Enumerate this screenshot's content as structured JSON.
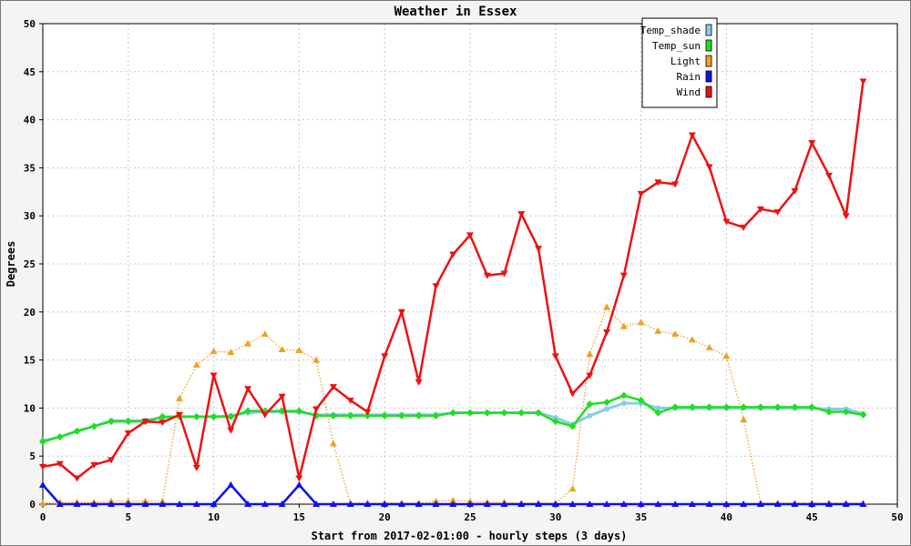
{
  "chart_data": {
    "type": "line",
    "title": "Weather in Essex",
    "xlabel": "Start from 2017-02-01:00 - hourly steps (3 days)",
    "ylabel": "Degrees",
    "xlim": [
      0,
      50
    ],
    "ylim": [
      0,
      50
    ],
    "xticks": [
      0,
      5,
      10,
      15,
      20,
      25,
      30,
      35,
      40,
      45,
      50
    ],
    "yticks": [
      0,
      5,
      10,
      15,
      20,
      25,
      30,
      35,
      40,
      45,
      50
    ],
    "grid": true,
    "legend_position": "top-right",
    "x": [
      0,
      1,
      2,
      3,
      4,
      5,
      6,
      7,
      8,
      9,
      10,
      11,
      12,
      13,
      14,
      15,
      16,
      17,
      18,
      19,
      20,
      21,
      22,
      23,
      24,
      25,
      26,
      27,
      28,
      29,
      30,
      31,
      32,
      33,
      34,
      35,
      36,
      37,
      38,
      39,
      40,
      41,
      42,
      43,
      44,
      45,
      46,
      47,
      48
    ],
    "series": [
      {
        "name": "Temp_shade",
        "color": "#87ceeb",
        "marker": "circle",
        "style": "solid",
        "values": [
          6.6,
          7.0,
          7.6,
          8.1,
          8.7,
          8.7,
          8.7,
          9.0,
          9.1,
          9.1,
          9.1,
          9.2,
          9.5,
          9.6,
          9.6,
          9.6,
          9.3,
          9.3,
          9.3,
          9.3,
          9.3,
          9.3,
          9.3,
          9.3,
          9.5,
          9.5,
          9.5,
          9.5,
          9.5,
          9.5,
          9.0,
          8.3,
          9.2,
          9.9,
          10.5,
          10.5,
          10.0,
          10.0,
          10.0,
          10.0,
          10.0,
          10.0,
          10.0,
          10.0,
          10.0,
          10.0,
          9.9,
          9.9,
          9.4
        ]
      },
      {
        "name": "Temp_sun",
        "color": "#22dd22",
        "marker": "diamond",
        "style": "solid",
        "values": [
          6.5,
          7.0,
          7.6,
          8.1,
          8.6,
          8.6,
          8.6,
          9.1,
          9.1,
          9.1,
          9.1,
          9.1,
          9.7,
          9.7,
          9.7,
          9.7,
          9.2,
          9.2,
          9.2,
          9.2,
          9.2,
          9.2,
          9.2,
          9.2,
          9.5,
          9.5,
          9.5,
          9.5,
          9.5,
          9.5,
          8.6,
          8.1,
          10.4,
          10.6,
          11.3,
          10.8,
          9.5,
          10.1,
          10.1,
          10.1,
          10.1,
          10.1,
          10.1,
          10.1,
          10.1,
          10.1,
          9.6,
          9.6,
          9.3
        ]
      },
      {
        "name": "Light",
        "color": "#f0a020",
        "marker": "triangle-up",
        "style": "dotted",
        "values": [
          0.1,
          0.2,
          0.2,
          0.2,
          0.3,
          0.3,
          0.3,
          0.3,
          11.0,
          14.5,
          15.9,
          15.8,
          16.7,
          17.7,
          16.1,
          16.0,
          15.0,
          6.3,
          0.1,
          0.1,
          0.1,
          0.1,
          0.1,
          0.3,
          0.4,
          0.3,
          0.2,
          0.2,
          0.1,
          0.1,
          0.1,
          1.6,
          15.6,
          20.5,
          18.5,
          18.9,
          18.0,
          17.7,
          17.1,
          16.3,
          15.4,
          8.8,
          0.1,
          0.1,
          0.1,
          0.1,
          0.1,
          0.1,
          0.1
        ]
      },
      {
        "name": "Rain",
        "color": "#1010ee",
        "marker": "triangle-up",
        "style": "solid",
        "values": [
          2.0,
          0,
          0,
          0,
          0,
          0,
          0,
          0,
          0,
          0,
          0,
          2.0,
          0,
          0,
          0,
          2.0,
          0,
          0,
          0,
          0,
          0,
          0,
          0,
          0,
          0,
          0,
          0,
          0,
          0,
          0,
          0,
          0,
          0,
          0,
          0,
          0,
          0,
          0,
          0,
          0,
          0,
          0,
          0,
          0,
          0,
          0,
          0,
          0,
          0
        ]
      },
      {
        "name": "Wind",
        "color": "#ee1111",
        "marker": "triangle-down",
        "style": "solid",
        "values": [
          3.9,
          4.2,
          2.7,
          4.1,
          4.6,
          7.4,
          8.6,
          8.5,
          9.3,
          3.8,
          13.4,
          7.7,
          12.0,
          9.3,
          11.2,
          2.7,
          9.9,
          12.2,
          10.8,
          9.6,
          15.4,
          20.0,
          12.7,
          22.7,
          26.0,
          28.0,
          23.8,
          24.0,
          30.2,
          26.6,
          15.4,
          11.5,
          13.4,
          17.9,
          23.8,
          32.3,
          33.5,
          33.3,
          38.4,
          35.1,
          29.4,
          28.8,
          30.7,
          30.4,
          32.6,
          37.6,
          34.2,
          30.0,
          44.0
        ]
      }
    ]
  }
}
